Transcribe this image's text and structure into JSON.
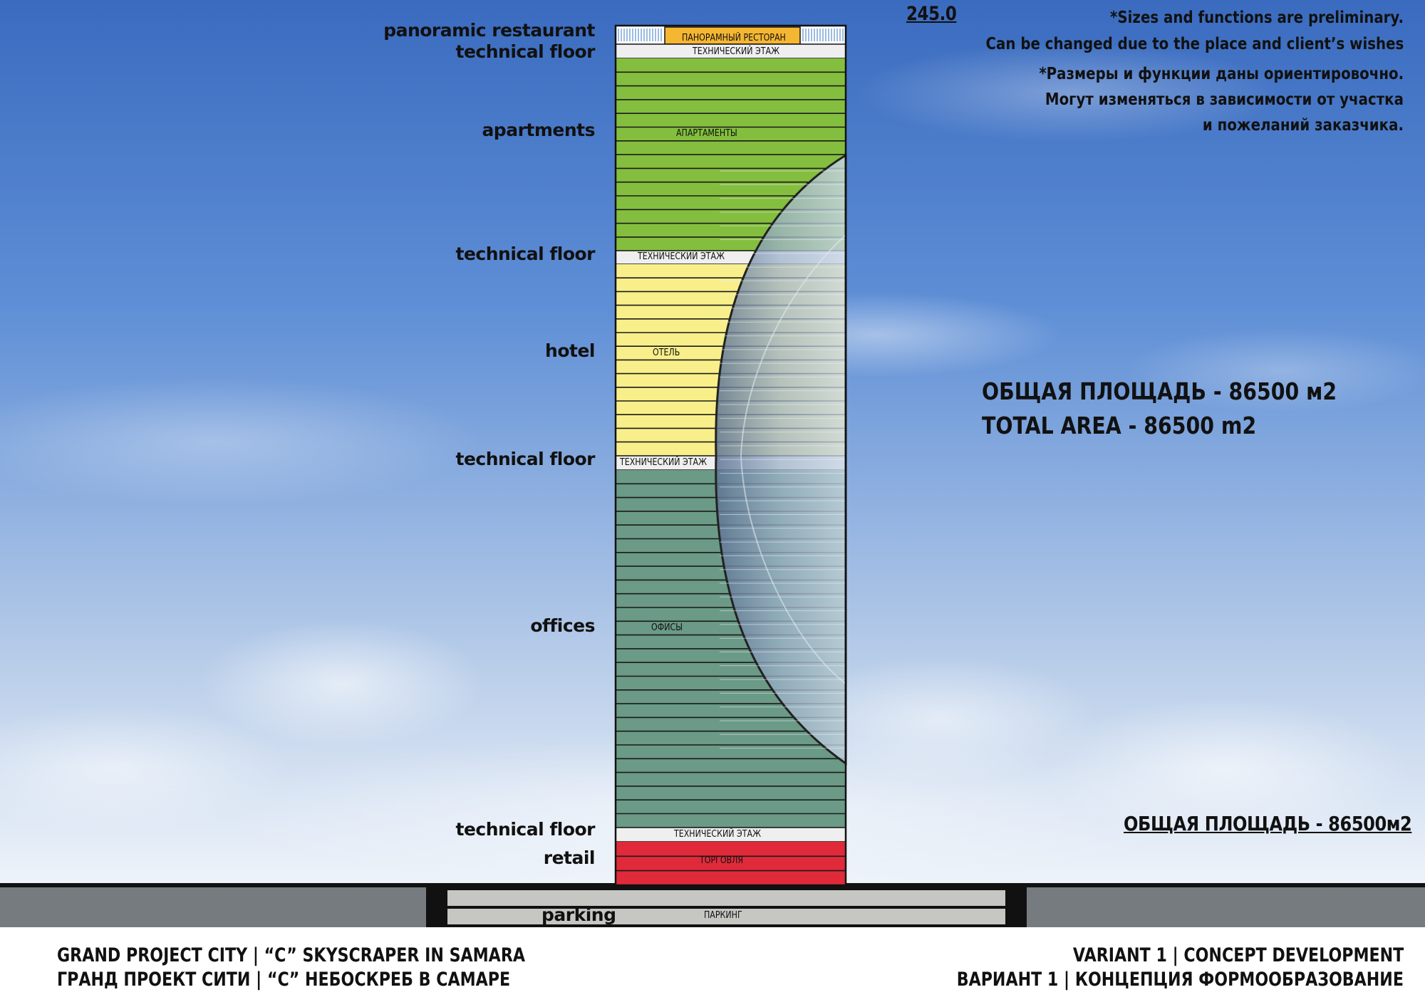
{
  "height_mark": "245.0",
  "labels_left": {
    "restaurant": "panoramic restaurant",
    "tech_top": "technical floor",
    "apartments": "apartments",
    "tech_2": "technical floor",
    "hotel": "hotel",
    "tech_3": "technical floor",
    "offices": "offices",
    "tech_bottom": "technical floor",
    "retail": "retail",
    "parking": "parking"
  },
  "bands": {
    "restaurant": "ПАНОРАМНЫЙ РЕСТОРАН",
    "tech_top": "ТЕХНИЧЕСКИЙ ЭТАЖ",
    "apartments": "АПАРТАМЕНТЫ",
    "tech_2": "ТЕХНИЧЕСКИЙ ЭТАЖ",
    "hotel": "ОТЕЛЬ",
    "tech_3": "ТЕХНИЧЕСКИЙ ЭТАЖ",
    "offices": "ОФИСЫ",
    "tech_bottom": "ТЕХНИЧЕСКИЙ ЭТАЖ",
    "retail": "ТОРГОВЛЯ",
    "parking": "ПАРКИНГ"
  },
  "notes": [
    "*Sizes and functions are preliminary.",
    "Can be changed due to the place and client’s wishes",
    "*Размеры и функции даны ориентировочно.",
    "Могут изменяться в зависимости от участка",
    "и пожеланий заказчика."
  ],
  "total_area_ru": "ОБЩАЯ ПЛОЩАДЬ - 86500 м2",
  "total_area_en": "TOTAL AREA - 86500 m2",
  "total_area_small": "ОБЩАЯ ПЛОЩАДЬ - 86500м2",
  "footer": {
    "left_en": "GRAND PROJECT CITY  |  “C” SKYSCRAPER IN SAMARA",
    "left_ru": "ГРАНД ПРОЕКТ СИТИ  |  “С” НЕБОСКРЕБ В САМАРЕ",
    "right_en": "VARIANT 1  |  CONCEPT DEVELOPMENT",
    "right_ru": "ВАРИАНТ 1  |  КОНЦЕПЦИЯ ФОРМООБРАЗОВАНИЕ"
  },
  "colors": {
    "sky_top": "#3f72c4",
    "sky_bottom": "#e6eef8",
    "restaurant": "#f5b632",
    "apartments": "#84be3e",
    "hotel": "#f8ef8a",
    "offices": "#6b9a86",
    "retail": "#e02a3a",
    "technical": "#efefef",
    "ground": "#767b80"
  }
}
